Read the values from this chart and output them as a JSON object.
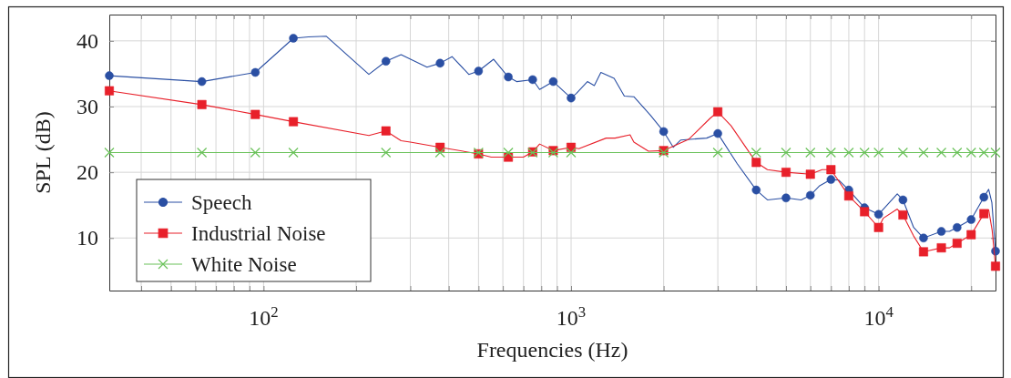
{
  "chart_data": {
    "type": "line",
    "xlabel": "Frequencies (Hz)",
    "ylabel": "SPL (dB)",
    "log": "x",
    "grid": true,
    "legend": "bottom left",
    "line_style": "solid",
    "xlim": [
      31.5,
      24000
    ],
    "ylim": [
      2,
      44
    ],
    "xticks": [
      {
        "value": 40,
        "label": null
      },
      {
        "value": 50,
        "label": null
      },
      {
        "value": 60,
        "label": null
      },
      {
        "value": 70,
        "label": null
      },
      {
        "value": 80,
        "label": null
      },
      {
        "value": 90,
        "label": null
      },
      {
        "value": 100,
        "label": "10$^{2}$"
      },
      {
        "value": 200,
        "label": null
      },
      {
        "value": 300,
        "label": null
      },
      {
        "value": 400,
        "label": null
      },
      {
        "value": 500,
        "label": null
      },
      {
        "value": 600,
        "label": null
      },
      {
        "value": 700,
        "label": null
      },
      {
        "value": 800,
        "label": null
      },
      {
        "value": 900,
        "label": null
      },
      {
        "value": 1000,
        "label": "10$^{3}$"
      },
      {
        "value": 2000,
        "label": null
      },
      {
        "value": 3000,
        "label": null
      },
      {
        "value": 4000,
        "label": null
      },
      {
        "value": 5000,
        "label": null
      },
      {
        "value": 6000,
        "label": null
      },
      {
        "value": 7000,
        "label": null
      },
      {
        "value": 8000,
        "label": null
      },
      {
        "value": 9000,
        "label": null
      },
      {
        "value": 10000,
        "label": "10$^{4}$"
      },
      {
        "value": 20000,
        "label": null
      }
    ],
    "yticks": [
      10,
      20,
      30,
      40
    ],
    "series": [
      {
        "marker": "none",
        "color": "#2a4fa3",
        "x": [
          31.5,
          63,
          94,
          125,
          140,
          160,
          220,
          250,
          280,
          340,
          375,
          410,
          465,
          500,
          560,
          625,
          665,
          750,
          790,
          875,
          1000,
          1040,
          1130,
          1190,
          1250,
          1380,
          1490,
          1600,
          1810,
          2000,
          2150,
          2270,
          2760,
          3000,
          3470,
          4000,
          4350,
          5000,
          5600,
          6000,
          6410,
          7000,
          7430,
          8000,
          9000,
          10000,
          11500,
          12000,
          13000,
          14000,
          16000,
          17000,
          18000,
          20000,
          22000,
          22800,
          23350,
          24000
        ],
        "values": [
          34.7,
          33.8,
          35.2,
          40.4,
          40.6,
          40.7,
          34.9,
          36.9,
          37.9,
          36.0,
          36.6,
          37.6,
          34.9,
          35.4,
          37.2,
          34.5,
          33.8,
          34.1,
          32.6,
          33.8,
          31.3,
          32.0,
          33.8,
          33.2,
          35.2,
          34.3,
          31.6,
          31.5,
          28.7,
          26.2,
          23.8,
          24.9,
          25.2,
          25.9,
          21.3,
          17.3,
          15.8,
          16.1,
          15.8,
          16.5,
          17.9,
          18.9,
          18.8,
          17.3,
          14.6,
          13.6,
          16.7,
          15.8,
          11.6,
          10.0,
          11.0,
          11.0,
          11.6,
          12.8,
          16.2,
          17.4,
          15.4,
          8.0
        ]
      },
      {
        "type": "scatter",
        "name": "Speech",
        "marker": "circle",
        "color": "#2a4fa3",
        "x": [
          31.5,
          63,
          94,
          125,
          250,
          375,
          500,
          625,
          750,
          875,
          1000,
          2000,
          3000,
          4000,
          5000,
          6000,
          7000,
          8000,
          9000,
          10000,
          12000,
          14000,
          16000,
          18000,
          20000,
          22000,
          24000
        ],
        "values": [
          34.7,
          33.8,
          35.2,
          40.4,
          36.9,
          36.6,
          35.4,
          34.5,
          34.1,
          33.8,
          31.3,
          26.2,
          25.9,
          17.3,
          16.1,
          16.5,
          18.9,
          17.3,
          14.6,
          13.6,
          15.8,
          10.0,
          11.0,
          11.6,
          12.8,
          16.2,
          8.0
        ]
      },
      {
        "marker": "none",
        "color": "#e8202a",
        "x": [
          31.5,
          63,
          94,
          125,
          220,
          250,
          280,
          300,
          375,
          500,
          550,
          625,
          700,
          750,
          790,
          875,
          1000,
          1060,
          1300,
          1390,
          1555,
          1600,
          1785,
          2000,
          2410,
          2830,
          3000,
          3310,
          4000,
          4350,
          5000,
          6000,
          6550,
          7000,
          8000,
          9000,
          10000,
          10350,
          11500,
          12000,
          13000,
          14000,
          16000,
          17000,
          18000,
          20000,
          22000,
          22800,
          23400,
          24000
        ],
        "values": [
          32.4,
          30.3,
          28.8,
          27.7,
          25.6,
          26.3,
          24.8,
          24.6,
          23.8,
          22.8,
          22.3,
          22.3,
          22.3,
          23.1,
          24.3,
          23.3,
          23.8,
          23.6,
          25.2,
          25.2,
          25.7,
          24.6,
          23.2,
          23.3,
          25.0,
          28.2,
          29.2,
          27.1,
          21.5,
          20.4,
          20.0,
          19.7,
          20.4,
          20.4,
          16.4,
          14.0,
          11.6,
          13.0,
          14.4,
          13.5,
          10.3,
          7.9,
          8.5,
          8.5,
          9.2,
          10.5,
          13.7,
          14.3,
          11.2,
          5.7
        ]
      },
      {
        "type": "scatter",
        "name": "Industrial Noise",
        "marker": "square",
        "color": "#e8202a",
        "x": [
          31.5,
          63,
          94,
          125,
          250,
          375,
          500,
          625,
          750,
          875,
          1000,
          2000,
          3000,
          4000,
          5000,
          6000,
          7000,
          8000,
          9000,
          10000,
          12000,
          14000,
          16000,
          18000,
          20000,
          22000,
          24000
        ],
        "values": [
          32.4,
          30.3,
          28.8,
          27.7,
          26.3,
          23.8,
          22.8,
          22.3,
          23.1,
          23.3,
          23.8,
          23.3,
          29.2,
          21.5,
          20.0,
          19.7,
          20.4,
          16.4,
          14.0,
          11.6,
          13.5,
          7.9,
          8.5,
          9.2,
          10.5,
          13.7,
          5.7
        ]
      },
      {
        "name": "White Noise",
        "marker": "cross",
        "color": "#6ac25a",
        "x": [
          31.5,
          63,
          94,
          125,
          250,
          375,
          500,
          625,
          750,
          875,
          1000,
          2000,
          3000,
          4000,
          5000,
          6000,
          7000,
          8000,
          9000,
          10000,
          12000,
          14000,
          16000,
          18000,
          20000,
          22000,
          24000
        ],
        "values": [
          23,
          23,
          23,
          23,
          23,
          23,
          23,
          23,
          23,
          23,
          23,
          23,
          23,
          23,
          23,
          23,
          23,
          23,
          23,
          23,
          23,
          23,
          23,
          23,
          23,
          23,
          23
        ]
      }
    ]
  }
}
